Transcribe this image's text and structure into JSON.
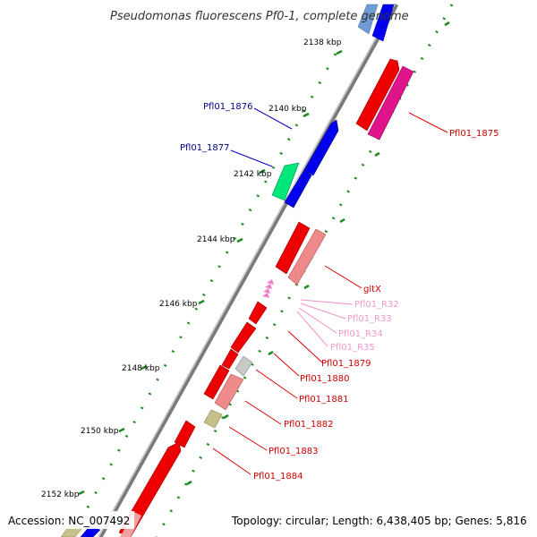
{
  "title": "Pseudomonas fluorescens Pf0-1, complete genome",
  "footer": {
    "accession": "Accession: NC_007492",
    "summary": "Topology: circular; Length: 6,438,405 bp; Genes: 5,816"
  },
  "colors": {
    "backbone": "#888888",
    "tick_dots": "#1f8a1f",
    "forward_label": "#00008b",
    "reverse_label": "#cc0000",
    "rna_label": "#e58ab8"
  },
  "kbp_marks": [
    "2138 kbp",
    "2140 kbp",
    "2142 kbp",
    "2144 kbp",
    "2146 kbp",
    "2148 kbp",
    "2150 kbp",
    "2152 kbp"
  ],
  "labels": {
    "pfl01_1876": "Pfl01_1876",
    "pfl01_1877": "Pfl01_1877",
    "pfl01_1875": "Pfl01_1875",
    "gltx": "gltX",
    "pfl01_r32": "Pfl01_R32",
    "pfl01_r33": "Pfl01_R33",
    "pfl01_r34": "Pfl01_R34",
    "pfl01_r35": "Pfl01_R35",
    "pfl01_1879": "Pfl01_1879",
    "pfl01_1880": "Pfl01_1880",
    "pfl01_1881": "Pfl01_1881",
    "pfl01_1882": "Pfl01_1882",
    "pfl01_1883": "Pfl01_1883",
    "pfl01_1884": "Pfl01_1884"
  }
}
